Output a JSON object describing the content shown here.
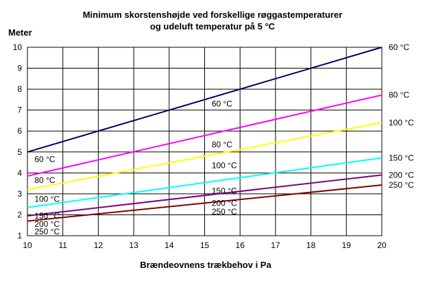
{
  "chart_data": {
    "type": "line",
    "title_lines": [
      "Minimum skorstenshøjde ved forskellige røggastemperaturer",
      "og udeluft temperatur på 5 °C"
    ],
    "ylabel": "Meter",
    "xlabel": "Brændeovnens trækbehov i Pa",
    "xlim": [
      10,
      20
    ],
    "ylim": [
      1,
      10
    ],
    "x_ticks": [
      "10",
      "11",
      "12",
      "13",
      "14",
      "15",
      "16",
      "17",
      "18",
      "19",
      "20"
    ],
    "y_ticks": [
      "1",
      "2",
      "3",
      "4",
      "5",
      "6",
      "7",
      "8",
      "9",
      "10"
    ],
    "grid": true,
    "series": [
      {
        "name": "60 °C",
        "color": "#000066",
        "y_start": 5.0,
        "y_end": 10.0
      },
      {
        "name": "80 °C",
        "color": "#ff00ff",
        "y_start": 3.85,
        "y_end": 7.72
      },
      {
        "name": "100 °C",
        "color": "#ffff00",
        "y_start": 3.2,
        "y_end": 6.4
      },
      {
        "name": "150 °C",
        "color": "#00ffff",
        "y_start": 2.35,
        "y_end": 4.72
      },
      {
        "name": "200 °C",
        "color": "#800080",
        "y_start": 1.95,
        "y_end": 3.9
      },
      {
        "name": "250 °C",
        "color": "#800000",
        "y_start": 1.7,
        "y_end": 3.42
      }
    ],
    "inline_labels": [
      {
        "text": "60 °C",
        "x": 10.2,
        "y": 4.65
      },
      {
        "text": "80 °C",
        "x": 10.2,
        "y": 3.65
      },
      {
        "text": "100 °C",
        "x": 10.2,
        "y": 2.75
      },
      {
        "text": "150 °C",
        "x": 10.2,
        "y": 1.95
      },
      {
        "text": "200 °C",
        "x": 10.2,
        "y": 1.55
      },
      {
        "text": "250 °C",
        "x": 10.2,
        "y": 1.2
      },
      {
        "text": "60 °C",
        "x": 15.2,
        "y": 7.3
      },
      {
        "text": "80 °C",
        "x": 15.2,
        "y": 5.35
      },
      {
        "text": "100 °C",
        "x": 15.2,
        "y": 4.35
      },
      {
        "text": "150 °C",
        "x": 15.2,
        "y": 3.15
      },
      {
        "text": "200 °C",
        "x": 15.2,
        "y": 2.55
      },
      {
        "text": "250 °C",
        "x": 15.2,
        "y": 2.15
      }
    ]
  }
}
